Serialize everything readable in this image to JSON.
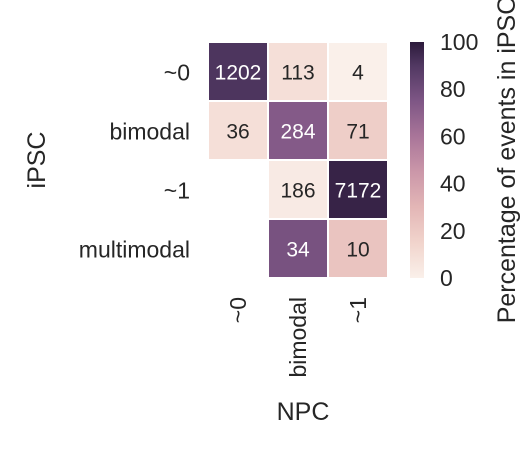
{
  "chart_data": {
    "type": "heatmap",
    "xlabel": "NPC",
    "ylabel": "iPSC",
    "x_categories": [
      "~0",
      "bimodal",
      "~1"
    ],
    "y_categories": [
      "~0",
      "bimodal",
      "~1",
      "multimodal"
    ],
    "counts": [
      [
        1202,
        113,
        4
      ],
      [
        36,
        284,
        71
      ],
      [
        null,
        186,
        7172
      ],
      [
        null,
        34,
        10
      ]
    ],
    "percentages": [
      [
        91,
        9,
        0
      ],
      [
        9,
        73,
        18
      ],
      [
        null,
        3,
        97
      ],
      [
        null,
        77,
        23
      ]
    ],
    "colorbar": {
      "label": "Percentage of events in iPSC",
      "ticks": [
        "0",
        "20",
        "40",
        "60",
        "80",
        "100"
      ],
      "range": [
        0,
        100
      ],
      "colors": {
        "low": "#faf0ea",
        "high": "#2c1a3b"
      }
    }
  }
}
